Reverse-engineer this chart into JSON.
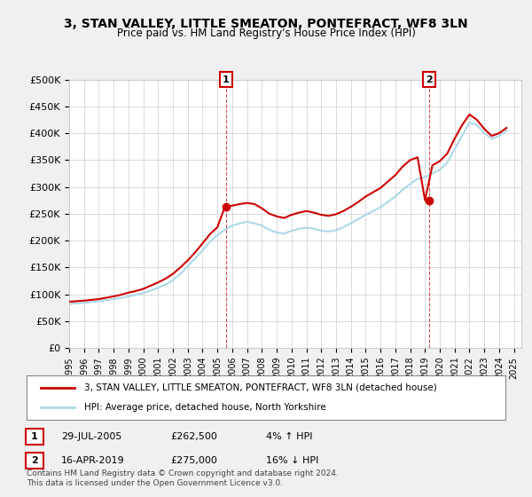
{
  "title": "3, STAN VALLEY, LITTLE SMEATON, PONTEFRACT, WF8 3LN",
  "subtitle": "Price paid vs. HM Land Registry's House Price Index (HPI)",
  "legend_line1": "3, STAN VALLEY, LITTLE SMEATON, PONTEFRACT, WF8 3LN (detached house)",
  "legend_line2": "HPI: Average price, detached house, North Yorkshire",
  "annotation1_label": "1",
  "annotation1_date": "29-JUL-2005",
  "annotation1_price": "£262,500",
  "annotation1_hpi": "4% ↑ HPI",
  "annotation1_year": 2005.58,
  "annotation1_value": 262500,
  "annotation2_label": "2",
  "annotation2_date": "16-APR-2019",
  "annotation2_price": "£275,000",
  "annotation2_hpi": "16% ↓ HPI",
  "annotation2_year": 2019.29,
  "annotation2_value": 275000,
  "footer": "Contains HM Land Registry data © Crown copyright and database right 2024.\nThis data is licensed under the Open Government Licence v3.0.",
  "ylim": [
    0,
    500000
  ],
  "yticks": [
    0,
    50000,
    100000,
    150000,
    200000,
    250000,
    300000,
    350000,
    400000,
    450000,
    500000
  ],
  "hpi_color": "#add8e6",
  "price_color": "#cc0000",
  "bg_color": "#f0f0f0",
  "plot_bg": "#ffffff",
  "hpi_data_years": [
    1995,
    1995.5,
    1996,
    1996.5,
    1997,
    1997.5,
    1998,
    1998.5,
    1999,
    1999.5,
    2000,
    2000.5,
    2001,
    2001.5,
    2002,
    2002.5,
    2003,
    2003.5,
    2004,
    2004.5,
    2005,
    2005.5,
    2006,
    2006.5,
    2007,
    2007.5,
    2008,
    2008.5,
    2009,
    2009.5,
    2010,
    2010.5,
    2011,
    2011.5,
    2012,
    2012.5,
    2013,
    2013.5,
    2014,
    2014.5,
    2015,
    2015.5,
    2016,
    2016.5,
    2017,
    2017.5,
    2018,
    2018.5,
    2019,
    2019.5,
    2020,
    2020.5,
    2021,
    2021.5,
    2022,
    2022.5,
    2023,
    2023.5,
    2024,
    2024.5
  ],
  "hpi_values": [
    82000,
    83000,
    84000,
    85500,
    87000,
    89000,
    91000,
    93000,
    96000,
    99000,
    102000,
    107000,
    112000,
    118000,
    126000,
    138000,
    152000,
    167000,
    182000,
    198000,
    210000,
    220000,
    228000,
    232000,
    235000,
    232000,
    228000,
    220000,
    215000,
    213000,
    218000,
    222000,
    224000,
    222000,
    218000,
    217000,
    219000,
    225000,
    232000,
    240000,
    248000,
    255000,
    262000,
    272000,
    282000,
    295000,
    305000,
    315000,
    318000,
    325000,
    332000,
    345000,
    370000,
    395000,
    420000,
    415000,
    400000,
    390000,
    395000,
    405000
  ],
  "price_years": [
    1995,
    1995.5,
    1996,
    1996.5,
    1997,
    1997.5,
    1998,
    1998.5,
    1999,
    1999.5,
    2000,
    2000.5,
    2001,
    2001.5,
    2002,
    2002.5,
    2003,
    2003.5,
    2004,
    2004.5,
    2005,
    2005.5,
    2006,
    2006.5,
    2007,
    2007.5,
    2008,
    2008.5,
    2009,
    2009.5,
    2010,
    2010.5,
    2011,
    2011.5,
    2012,
    2012.5,
    2013,
    2013.5,
    2014,
    2014.5,
    2015,
    2015.5,
    2016,
    2016.5,
    2017,
    2017.5,
    2018,
    2018.5,
    2019,
    2019.5,
    2020,
    2020.5,
    2021,
    2021.5,
    2022,
    2022.5,
    2023,
    2023.5,
    2024,
    2024.5
  ],
  "price_values": [
    86000,
    87000,
    88000,
    89500,
    91000,
    93500,
    96000,
    99000,
    103000,
    106000,
    110000,
    116000,
    122000,
    129000,
    138000,
    150000,
    163000,
    178000,
    195000,
    212000,
    225000,
    262500,
    265000,
    268000,
    270000,
    268000,
    260000,
    250000,
    245000,
    242000,
    248000,
    252000,
    255000,
    252000,
    248000,
    246000,
    249000,
    255000,
    263000,
    272000,
    282000,
    290000,
    298000,
    310000,
    322000,
    338000,
    350000,
    355000,
    275000,
    340000,
    348000,
    362000,
    390000,
    415000,
    435000,
    425000,
    408000,
    395000,
    400000,
    410000
  ]
}
